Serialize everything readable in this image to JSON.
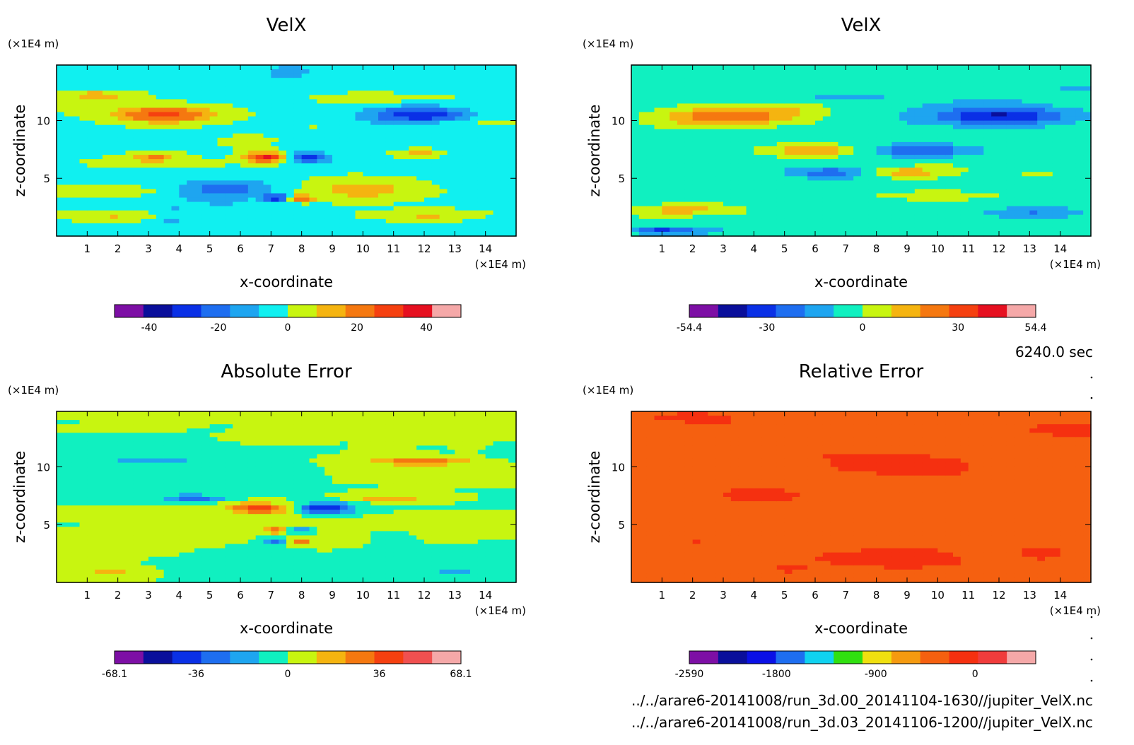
{
  "chart_data": [
    {
      "type": "heatmap",
      "id": "velx-1",
      "title": "VelX",
      "xlabel": "x-coordinate",
      "ylabel": "z-coordinate",
      "xunit": "(×1E4 m)",
      "yunit": "(×1E4 m)",
      "xlim": [
        0,
        15
      ],
      "ylim": [
        0,
        14.8
      ],
      "xticks": [
        "1",
        "2",
        "3",
        "4",
        "5",
        "6",
        "7",
        "8",
        "9",
        "10",
        "11",
        "12",
        "13",
        "14"
      ],
      "yticks": [
        "5",
        "10"
      ],
      "colorbar": {
        "colors": [
          "#7d0fa5",
          "#0a0f9b",
          "#0a30e6",
          "#1e6ef0",
          "#1ea5f0",
          "#10f0f0",
          "#c8f510",
          "#f5b410",
          "#f57810",
          "#f54010",
          "#e61020",
          "#f5a8a8"
        ],
        "range": [
          -50,
          50
        ],
        "ticks": [
          "-40",
          "-20",
          "0",
          "20",
          "40"
        ],
        "tick_values": [
          -40,
          -20,
          0,
          20,
          40
        ]
      },
      "palette_levels": [
        -5,
        -4,
        -3,
        -2,
        -1,
        0,
        1,
        2,
        3,
        4,
        5,
        6
      ],
      "field": {
        "base": 0.3,
        "bg_noise": 0.7,
        "blobs": [
          {
            "x": 3.5,
            "y": 10.5,
            "sx": 1.7,
            "sy": 0.7,
            "a": 3.6
          },
          {
            "x": 11.8,
            "y": 10.5,
            "sx": 1.7,
            "sy": 0.7,
            "a": -3.6
          },
          {
            "x": 6.8,
            "y": 6.8,
            "sx": 0.6,
            "sy": 0.45,
            "a": 4.5
          },
          {
            "x": 8.3,
            "y": 6.8,
            "sx": 0.6,
            "sy": 0.45,
            "a": -3.5
          },
          {
            "x": 3.2,
            "y": 6.9,
            "sx": 0.7,
            "sy": 0.35,
            "a": 2.2
          },
          {
            "x": 11.9,
            "y": 7.1,
            "sx": 0.8,
            "sy": 0.35,
            "a": 2.0
          },
          {
            "x": 5.5,
            "y": 4.0,
            "sx": 1.6,
            "sy": 0.9,
            "a": -2.3
          },
          {
            "x": 10.0,
            "y": 4.0,
            "sx": 1.8,
            "sy": 0.9,
            "a": 1.8
          },
          {
            "x": 1.2,
            "y": 12.2,
            "sx": 1.2,
            "sy": 0.35,
            "a": 1.4
          },
          {
            "x": 2.0,
            "y": 1.8,
            "sx": 1.8,
            "sy": 0.45,
            "a": 1.5
          },
          {
            "x": 12.3,
            "y": 1.8,
            "sx": 1.8,
            "sy": 0.45,
            "a": 1.5
          },
          {
            "x": 7.2,
            "y": 3.3,
            "sx": 0.4,
            "sy": 0.3,
            "a": -3.5
          },
          {
            "x": 8.0,
            "y": 3.3,
            "sx": 0.4,
            "sy": 0.3,
            "a": 4.0
          },
          {
            "x": 12.2,
            "y": 12.6,
            "sx": 2.0,
            "sy": 0.3,
            "a": -1.0
          }
        ]
      }
    },
    {
      "type": "heatmap",
      "id": "velx-2",
      "title": "VelX",
      "xlabel": "x-coordinate",
      "ylabel": "z-coordinate",
      "xunit": "(×1E4 m)",
      "yunit": "(×1E4 m)",
      "xlim": [
        0,
        15
      ],
      "ylim": [
        0,
        14.8
      ],
      "xticks": [
        "1",
        "2",
        "3",
        "4",
        "5",
        "6",
        "7",
        "8",
        "9",
        "10",
        "11",
        "12",
        "13",
        "14"
      ],
      "yticks": [
        "5",
        "10"
      ],
      "colorbar": {
        "colors": [
          "#7d0fa5",
          "#0a0f9b",
          "#0a30e6",
          "#1e6ef0",
          "#1ea5f0",
          "#10f0c0",
          "#c8f510",
          "#f5b410",
          "#f57810",
          "#f54010",
          "#e61020",
          "#f5a8a8"
        ],
        "range": [
          -54.4,
          54.4
        ],
        "ticks": [
          "-54.4",
          "-30",
          "0",
          "30",
          "54.4"
        ],
        "tick_values": [
          -54.4,
          -30,
          0,
          30,
          54.4
        ]
      },
      "palette_levels": [
        -5,
        -4,
        -3,
        -2,
        -1,
        0,
        1,
        2,
        3,
        4,
        5,
        6
      ],
      "field": {
        "base": 0.0,
        "bg_noise": 0.6,
        "blobs": [
          {
            "x": 3.3,
            "y": 10.4,
            "sx": 2.2,
            "sy": 0.8,
            "a": 3.4
          },
          {
            "x": 12.0,
            "y": 10.4,
            "sx": 2.1,
            "sy": 0.8,
            "a": -3.6
          },
          {
            "x": 5.8,
            "y": 7.4,
            "sx": 1.6,
            "sy": 0.5,
            "a": 2.4
          },
          {
            "x": 9.5,
            "y": 7.4,
            "sx": 1.6,
            "sy": 0.5,
            "a": -2.6
          },
          {
            "x": 6.5,
            "y": 5.5,
            "sx": 1.4,
            "sy": 0.5,
            "a": -2.0
          },
          {
            "x": 9.0,
            "y": 5.5,
            "sx": 1.2,
            "sy": 0.5,
            "a": 2.0
          },
          {
            "x": 2.0,
            "y": 2.3,
            "sx": 1.7,
            "sy": 0.5,
            "a": 1.8
          },
          {
            "x": 10.0,
            "y": 3.5,
            "sx": 2.0,
            "sy": 0.4,
            "a": 1.4
          },
          {
            "x": 13.2,
            "y": 2.0,
            "sx": 1.5,
            "sy": 0.5,
            "a": -1.6
          },
          {
            "x": 1.0,
            "y": 0.5,
            "sx": 1.0,
            "sy": 0.3,
            "a": -2.6
          },
          {
            "x": 7.7,
            "y": 12.0,
            "sx": 3.0,
            "sy": 0.4,
            "a": -1.0
          }
        ]
      }
    },
    {
      "type": "heatmap",
      "id": "absolute-error",
      "title": "Absolute Error",
      "xlabel": "x-coordinate",
      "ylabel": "z-coordinate",
      "xunit": "(×1E4 m)",
      "yunit": "(×1E4 m)",
      "xlim": [
        0,
        15
      ],
      "ylim": [
        0,
        14.8
      ],
      "xticks": [
        "1",
        "2",
        "3",
        "4",
        "5",
        "6",
        "7",
        "8",
        "9",
        "10",
        "11",
        "12",
        "13",
        "14"
      ],
      "yticks": [
        "5",
        "10"
      ],
      "colorbar": {
        "colors": [
          "#7d0fa5",
          "#0a0f9b",
          "#0a30e6",
          "#1e6ef0",
          "#1ea5f0",
          "#10f0c0",
          "#c8f510",
          "#f5b410",
          "#f57810",
          "#f54010",
          "#f05050",
          "#f5a8a8"
        ],
        "range": [
          -68.1,
          68.1
        ],
        "ticks": [
          "-68.1",
          "-36",
          "0",
          "36",
          "68.1"
        ],
        "tick_values": [
          -68.1,
          -36,
          0,
          36,
          68.1
        ]
      },
      "palette_levels": [
        -5,
        -4,
        -3,
        -2,
        -1,
        0,
        1,
        2,
        3,
        4,
        5,
        6
      ],
      "field": {
        "base": 0.5,
        "bg_noise": 0.55,
        "blobs": [
          {
            "x": 6.6,
            "y": 6.4,
            "sx": 0.9,
            "sy": 0.45,
            "a": 4.0
          },
          {
            "x": 8.8,
            "y": 6.4,
            "sx": 0.9,
            "sy": 0.45,
            "a": -4.0
          },
          {
            "x": 4.5,
            "y": 7.3,
            "sx": 1.0,
            "sy": 0.3,
            "a": -2.6
          },
          {
            "x": 10.8,
            "y": 7.3,
            "sx": 1.0,
            "sy": 0.3,
            "a": 2.2
          },
          {
            "x": 7.1,
            "y": 4.5,
            "sx": 0.3,
            "sy": 0.25,
            "a": 3.2
          },
          {
            "x": 8.0,
            "y": 4.5,
            "sx": 0.3,
            "sy": 0.25,
            "a": -3.2
          },
          {
            "x": 7.1,
            "y": 3.6,
            "sx": 0.3,
            "sy": 0.25,
            "a": -3.0
          },
          {
            "x": 8.0,
            "y": 3.6,
            "sx": 0.3,
            "sy": 0.25,
            "a": 3.0
          },
          {
            "x": 3.0,
            "y": 10.5,
            "sx": 1.4,
            "sy": 0.35,
            "a": -1.8
          },
          {
            "x": 12.3,
            "y": 10.5,
            "sx": 1.4,
            "sy": 0.35,
            "a": 1.8
          },
          {
            "x": 1.8,
            "y": 1.0,
            "sx": 0.7,
            "sy": 0.3,
            "a": 1.6
          },
          {
            "x": 13.0,
            "y": 1.0,
            "sx": 0.7,
            "sy": 0.3,
            "a": -1.6
          }
        ]
      }
    },
    {
      "type": "heatmap",
      "id": "relative-error",
      "title": "Relative Error",
      "xlabel": "x-coordinate",
      "ylabel": "z-coordinate",
      "xunit": "(×1E4 m)",
      "yunit": "(×1E4 m)",
      "xlim": [
        0,
        15
      ],
      "ylim": [
        0,
        14.8
      ],
      "xticks": [
        "1",
        "2",
        "3",
        "4",
        "5",
        "6",
        "7",
        "8",
        "9",
        "10",
        "11",
        "12",
        "13",
        "14"
      ],
      "yticks": [
        "5",
        "10"
      ],
      "colorbar": {
        "colors": [
          "#7d0fa5",
          "#0a0f9b",
          "#0a10e6",
          "#1e6ef0",
          "#10d2f0",
          "#30e010",
          "#f0e010",
          "#f59a10",
          "#f56010",
          "#f53010",
          "#f03c3c",
          "#f5a8a8"
        ],
        "range": [
          -2590,
          550
        ],
        "ticks": [
          "-2590",
          "-1800",
          "-900",
          "0"
        ],
        "tick_values": [
          -2590,
          -1800,
          -900,
          0
        ]
      },
      "palette_levels": [
        -5,
        -4,
        -3,
        -2,
        -1,
        0,
        1,
        2,
        3,
        4,
        5,
        6
      ],
      "field": {
        "base": 3.35,
        "bg_noise": 0.25,
        "blobs": []
      }
    }
  ],
  "time_label": "6240.0 sec",
  "file_paths": [
    "../../arare6-20141008/run_3d.00_20141104-1630//jupiter_VelX.nc",
    "../../arare6-20141008/run_3d.03_20141106-1200//jupiter_VelX.nc"
  ]
}
